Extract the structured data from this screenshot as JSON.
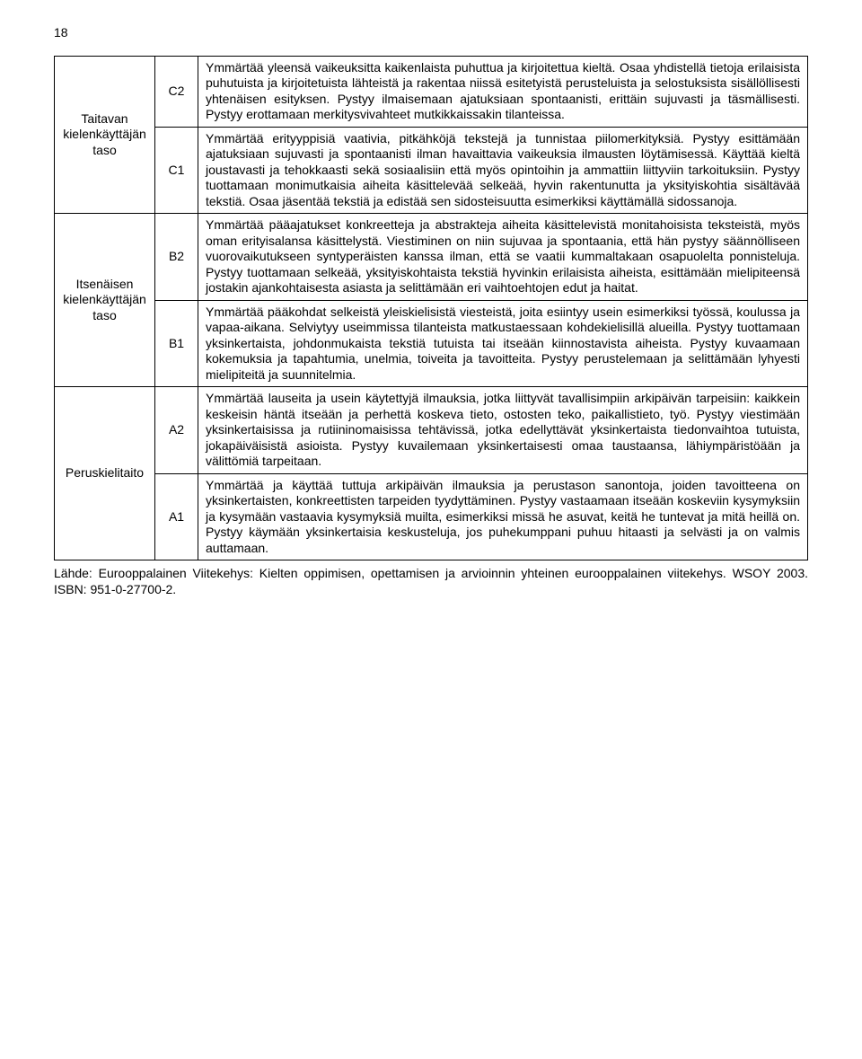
{
  "page_number": "18",
  "table": {
    "groups": [
      {
        "label": "Taitavan kielenkäyttäjän taso",
        "rows": [
          {
            "code": "C2",
            "desc": "Ymmärtää yleensä vaikeuksitta kaikenlaista puhuttua ja kirjoitettua kieltä. Osaa yhdistellä tietoja erilaisista puhutuista ja kirjoitetuista lähteistä ja rakentaa niissä esitetyistä perusteluista ja selostuksista sisällöllisesti yhtenäisen esityksen. Pystyy ilmaisemaan ajatuksiaan spontaanisti, erittäin sujuvasti ja täsmällisesti. Pystyy erottamaan merkitysvivahteet mutkikkaissakin tilanteissa."
          },
          {
            "code": "C1",
            "desc": "Ymmärtää erityyppisiä vaativia, pitkähköjä tekstejä ja tunnistaa piilomerkityksiä. Pystyy esittämään ajatuksiaan sujuvasti ja spontaanisti ilman havaittavia vaikeuksia ilmausten löytämisessä. Käyttää kieltä joustavasti ja tehokkaasti sekä sosiaalisiin että myös opintoihin ja ammattiin liittyviin tarkoituksiin. Pystyy tuottamaan monimutkaisia aiheita käsittelevää selkeää, hyvin rakentunutta ja yksityiskohtia sisältävää tekstiä. Osaa jäsentää tekstiä ja edistää sen sidosteisuutta esimerkiksi käyttämällä sidossanoja."
          }
        ]
      },
      {
        "label": "Itsenäisen kielenkäyttäjän taso",
        "rows": [
          {
            "code": "B2",
            "desc": "Ymmärtää pääajatukset konkreetteja ja abstrakteja aiheita käsittelevistä monitahoisista teksteistä, myös oman erityisalansa käsittelystä. Viestiminen on niin sujuvaa ja spontaania, että hän pystyy säännölliseen vuorovaikutukseen syntyperäisten kanssa ilman, että se vaatii kummaltakaan osapuolelta ponnisteluja. Pystyy tuottamaan selkeää, yksityiskohtaista tekstiä hyvinkin erilaisista aiheista, esittämään mielipiteensä jostakin ajankohtaisesta asiasta ja selittämään eri vaihtoehtojen edut ja haitat."
          },
          {
            "code": "B1",
            "desc": "Ymmärtää pääkohdat selkeistä yleiskielisistä viesteistä, joita esiintyy usein esimerkiksi työssä, koulussa ja vapaa-aikana. Selviytyy useimmissa tilanteista matkustaessaan kohdekielisillä alueilla. Pystyy tuottamaan yksinkertaista, johdonmukaista tekstiä tutuista tai itseään kiinnostavista aiheista. Pystyy kuvaamaan kokemuksia ja tapahtumia, unelmia, toiveita ja tavoitteita. Pystyy perustelemaan ja selittämään lyhyesti mielipiteitä ja suunnitelmia."
          }
        ]
      },
      {
        "label": "Peruskielitaito",
        "rows": [
          {
            "code": "A2",
            "desc": "Ymmärtää lauseita ja usein käytettyjä ilmauksia, jotka liittyvät tavallisimpiin arkipäivän tarpeisiin: kaikkein keskeisin häntä itseään ja perhettä koskeva tieto, ostosten teko, paikallistieto, työ. Pystyy viestimään yksinkertaisissa ja rutiininomaisissa tehtävissä, jotka edellyttävät yksinkertaista tiedonvaihtoa tutuista, jokapäiväisistä asioista. Pystyy kuvailemaan yksinkertaisesti omaa taustaansa, lähiympäristöään ja välittömiä tarpeitaan."
          },
          {
            "code": "A1",
            "desc": "Ymmärtää ja käyttää tuttuja arkipäivän ilmauksia ja perustason sanontoja, joiden tavoitteena on yksinkertaisten, konkreettisten tarpeiden tyydyttäminen. Pystyy vastaamaan itseään koskeviin kysymyksiin ja kysymään vastaavia kysymyksiä muilta, esimerkiksi missä he asuvat, keitä he tuntevat ja mitä heillä on. Pystyy käymään yksinkertaisia keskusteluja, jos puhekumppani puhuu hitaasti ja selvästi ja on valmis auttamaan."
          }
        ]
      }
    ]
  },
  "source": "Lähde: Eurooppalainen Viitekehys: Kielten oppimisen, opettamisen ja arvioinnin yhteinen eurooppalainen viitekehys. WSOY 2003. ISBN: 951-0-27700-2."
}
